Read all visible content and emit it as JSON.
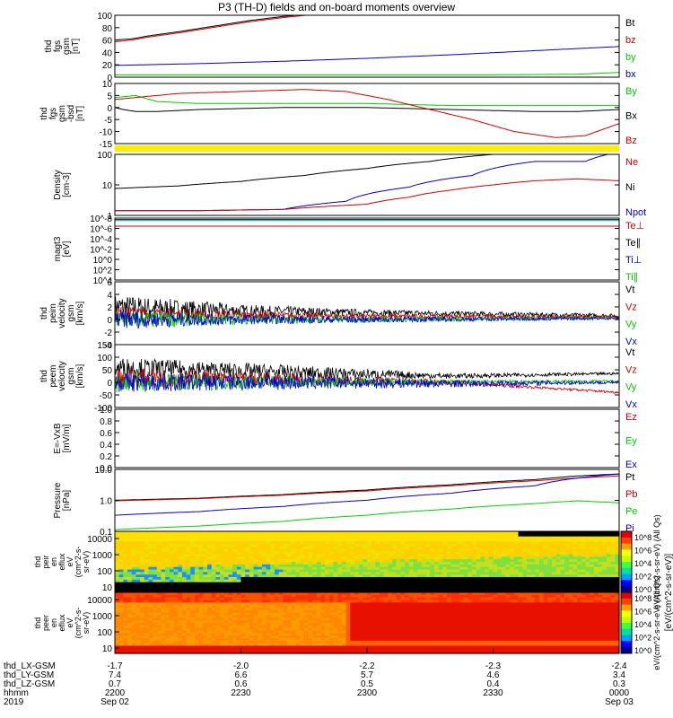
{
  "chart_data": {
    "type": "line",
    "title": "P3 (TH-D) fields and on-board moments overview",
    "x_time_ticks": [
      "2200",
      "2230",
      "2300",
      "2330",
      "0000"
    ],
    "x_date_ticks": [
      "Sep 02",
      "",
      "",
      "",
      "Sep 03"
    ],
    "ephemeris": [
      {
        "label": "thd_LX-GSM",
        "values": [
          "-1.7",
          "-2.0",
          "-2.2",
          "-2.3",
          "-2.4"
        ]
      },
      {
        "label": "thd_LY-GSM",
        "values": [
          "7.4",
          "6.6",
          "5.7",
          "4.6",
          "3.4"
        ]
      },
      {
        "label": "thd_LZ-GSM",
        "values": [
          "0.7",
          "0.6",
          "0.5",
          "0.4",
          "0.3"
        ]
      },
      {
        "label": "hhmm",
        "values": [
          "2200",
          "2230",
          "2300",
          "2330",
          "0000"
        ]
      },
      {
        "label": "2019",
        "values": [
          "Sep 02",
          "",
          "",
          "",
          "Sep 03"
        ]
      }
    ],
    "colors": {
      "black": "#000000",
      "red": "#cc0000",
      "green": "#00cc00",
      "blue": "#0000cc",
      "yellow": "#ffee00"
    },
    "panels": [
      {
        "ylabel": [
          "thd",
          "fgs",
          "gsm",
          "[nT]"
        ],
        "yticks": [
          "100",
          "80",
          "60",
          "40",
          "20",
          "0"
        ],
        "ylim": [
          -5,
          100
        ],
        "log": false,
        "legend": [
          {
            "text": "Bt",
            "color": "black"
          },
          {
            "text": "bz",
            "color": "red"
          },
          {
            "text": "by",
            "color": "green"
          },
          {
            "text": "bx",
            "color": "blue"
          }
        ],
        "series": [
          {
            "color": "black",
            "x": [
              0,
              4,
              8,
              16,
              24,
              32,
              40,
              48,
              50
            ],
            "y": [
              58,
              60,
              65,
              73,
              82,
              91,
              98,
              103,
              105
            ]
          },
          {
            "color": "red",
            "x": [
              0,
              4,
              8,
              16,
              24,
              32,
              40,
              48,
              50
            ],
            "y": [
              55,
              58,
              63,
              71,
              80,
              89,
              96,
              102,
              104
            ]
          },
          {
            "color": "blue",
            "x": [
              0,
              20,
              40,
              60,
              80,
              100,
              120
            ],
            "y": [
              15,
              18,
              22,
              27,
              33,
              40,
              47
            ]
          },
          {
            "color": "green",
            "x": [
              0,
              30,
              60,
              90,
              110,
              120
            ],
            "y": [
              -1,
              -1,
              -1,
              -1,
              0,
              3
            ]
          }
        ]
      },
      {
        "ylabel": [
          "thd",
          "fgs",
          "gsm",
          "-bsd",
          "[nT]"
        ],
        "yticks": [
          "10",
          "5",
          "0",
          "-5",
          "-10",
          "-15"
        ],
        "ylim": [
          -18,
          12
        ],
        "log": false,
        "legend": [
          {
            "text": "By",
            "color": "green"
          },
          {
            "text": "Bx",
            "color": "black"
          },
          {
            "text": "Bz",
            "color": "red"
          }
        ],
        "series": [
          {
            "color": "black",
            "x": [
              0,
              2,
              5,
              10,
              20,
              40,
              60,
              80,
              100,
              110,
              120
            ],
            "y": [
              0,
              -1,
              -2,
              -2,
              -1,
              0,
              0,
              -1,
              -2,
              -2,
              -1
            ]
          },
          {
            "color": "green",
            "x": [
              0,
              5,
              10,
              20,
              40,
              60,
              80,
              100,
              120
            ],
            "y": [
              5,
              6,
              3,
              2,
              2,
              2,
              1,
              1,
              1
            ]
          },
          {
            "color": "red",
            "x": [
              0,
              5,
              15,
              30,
              45,
              55,
              65,
              75,
              85,
              95,
              105,
              112,
              120
            ],
            "y": [
              4,
              5,
              7,
              8,
              9,
              8,
              4,
              -1,
              -6,
              -12,
              -15,
              -14,
              -8
            ]
          }
        ]
      },
      {
        "ylabel": [
          "Density",
          "[cm-3]"
        ],
        "yticks": [
          "100",
          "10",
          "1"
        ],
        "ylim": [
          0.5,
          200
        ],
        "log": true,
        "legend": [
          {
            "text": "Ne",
            "color": "red"
          },
          {
            "text": "Ni",
            "color": "black"
          },
          {
            "text": "Npot",
            "color": "blue"
          }
        ],
        "series": [
          {
            "color": "black",
            "x": [
              0,
              15,
              30,
              45,
              60,
              75,
              90
            ],
            "y": [
              7,
              9,
              14,
              25,
              50,
              100,
              200
            ]
          },
          {
            "color": "blue",
            "x": [
              0,
              20,
              40,
              55,
              70,
              85,
              100,
              112,
              120
            ],
            "y": [
              0.8,
              0.8,
              0.9,
              2,
              8,
              25,
              100,
              100,
              250
            ]
          },
          {
            "color": "red",
            "x": [
              0,
              20,
              40,
              60,
              70,
              80,
              90,
              100,
              110,
              120
            ],
            "y": [
              0.8,
              0.8,
              0.9,
              1.5,
              3,
              6,
              10,
              15,
              18,
              15
            ]
          }
        ]
      },
      {
        "ylabel": [
          "magt3",
          "[eV]"
        ],
        "yticks": [
          "10^-8",
          "10^-6",
          "10^-4",
          "10^-2",
          "10^0",
          "10^2",
          "10^4"
        ],
        "ylim": [
          1e-09,
          10000.0
        ],
        "log": true,
        "legend": [
          {
            "text": "Te⊥",
            "color": "red"
          },
          {
            "text": "Te∥",
            "color": "black"
          },
          {
            "text": "Ti⊥",
            "color": "blue"
          },
          {
            "text": "Ti∥",
            "color": "green"
          }
        ],
        "series": [
          {
            "color": "blue",
            "x": [
              0,
              40,
              80,
              120
            ],
            "y": [
              5000,
              5000,
              5000,
              5000
            ]
          },
          {
            "color": "green",
            "x": [
              0,
              40,
              80,
              120
            ],
            "y": [
              3000,
              3000,
              3000,
              3000
            ]
          },
          {
            "color": "red",
            "x": [
              0,
              40,
              80,
              120
            ],
            "y": [
              200,
              200,
              200,
              200
            ]
          }
        ]
      },
      {
        "ylabel": [
          "thd",
          "peim",
          "velocity",
          "gsm",
          "[km/s]"
        ],
        "yticks": [
          "6",
          "4",
          "2",
          "0",
          "-2",
          "-4"
        ],
        "ylim": [
          -4,
          6
        ],
        "log": false,
        "legend": [
          {
            "text": "Vt",
            "color": "black"
          },
          {
            "text": "Vz",
            "color": "red"
          },
          {
            "text": "Vy",
            "color": "green"
          },
          {
            "text": "Vx",
            "color": "blue"
          }
        ],
        "noise": [
          {
            "color": "black",
            "x": [
              0,
              30,
              60,
              120
            ],
            "mean": [
              2,
              1.4,
              1.1,
              0.6
            ],
            "amp": [
              2,
              1,
              0.5,
              0.3
            ]
          },
          {
            "color": "red",
            "x": [
              0,
              30,
              60,
              120
            ],
            "mean": [
              1,
              0.7,
              0.5,
              0.4
            ],
            "amp": [
              1.2,
              0.6,
              0.4,
              0.2
            ]
          },
          {
            "color": "green",
            "x": [
              0,
              30,
              60,
              120
            ],
            "mean": [
              0,
              0,
              0,
              0.2
            ],
            "amp": [
              1.5,
              0.8,
              0.5,
              0.2
            ]
          },
          {
            "color": "blue",
            "x": [
              0,
              30,
              60,
              120
            ],
            "mean": [
              0,
              0,
              0,
              0.2
            ],
            "amp": [
              1.5,
              0.8,
              0.5,
              0.2
            ]
          }
        ]
      },
      {
        "ylabel": [
          "thd",
          "peem",
          "velocity",
          "gsm",
          "[km/s]"
        ],
        "yticks": [
          "150",
          "100",
          "50",
          "0",
          "-50",
          "-100"
        ],
        "ylim": [
          -100,
          150
        ],
        "log": false,
        "legend": [
          {
            "text": "Vt",
            "color": "black"
          },
          {
            "text": "Vz",
            "color": "red"
          },
          {
            "text": "Vy",
            "color": "green"
          },
          {
            "text": "Vx",
            "color": "blue"
          }
        ],
        "noise": [
          {
            "color": "black",
            "x": [
              0,
              40,
              80,
              120
            ],
            "mean": [
              60,
              40,
              25,
              35
            ],
            "amp": [
              40,
              30,
              10,
              5
            ]
          },
          {
            "color": "red",
            "x": [
              0,
              40,
              80,
              100,
              120
            ],
            "mean": [
              20,
              10,
              0,
              -20,
              -40
            ],
            "amp": [
              40,
              25,
              10,
              5,
              5
            ]
          },
          {
            "color": "green",
            "x": [
              0,
              40,
              80,
              120
            ],
            "mean": [
              0,
              0,
              0,
              5
            ],
            "amp": [
              40,
              25,
              10,
              5
            ]
          },
          {
            "color": "blue",
            "x": [
              0,
              40,
              80,
              120
            ],
            "mean": [
              0,
              0,
              -5,
              0
            ],
            "amp": [
              40,
              30,
              15,
              5
            ]
          }
        ]
      },
      {
        "ylabel": [
          "E=-VxB",
          "[mV/m]"
        ],
        "yticks": [
          "1.0",
          "0.8",
          "0.6",
          "0.4",
          "0.2",
          "0.0"
        ],
        "ylim": [
          0,
          1
        ],
        "log": false,
        "legend": [
          {
            "text": "Ez",
            "color": "red"
          },
          {
            "text": "Ey",
            "color": "green"
          },
          {
            "text": "Ex",
            "color": "blue"
          }
        ],
        "series": []
      },
      {
        "ylabel": [
          "Pressure",
          "[nPa]"
        ],
        "yticks": [
          "10.0",
          "1.0",
          "0.1"
        ],
        "ylim": [
          0.05,
          50
        ],
        "log": true,
        "legend": [
          {
            "text": "Pt",
            "color": "black"
          },
          {
            "text": "Pb",
            "color": "red"
          },
          {
            "text": "Pe",
            "color": "green"
          },
          {
            "text": "Pi",
            "color": "blue"
          }
        ],
        "series": [
          {
            "color": "black",
            "x": [
              0,
              20,
              40,
              60,
              80,
              100,
              110,
              120
            ],
            "y": [
              1.6,
              2,
              3,
              5,
              9,
              16,
              24,
              30
            ]
          },
          {
            "color": "red",
            "x": [
              0,
              20,
              40,
              60,
              80,
              100,
              120
            ],
            "y": [
              1.5,
              1.9,
              2.8,
              4.5,
              8,
              14,
              24
            ]
          },
          {
            "color": "blue",
            "x": [
              0,
              20,
              40,
              60,
              80,
              100,
              120
            ],
            "y": [
              0.3,
              0.45,
              0.8,
              1.6,
              3.5,
              8,
              30
            ]
          },
          {
            "color": "green",
            "x": [
              0,
              20,
              40,
              60,
              80,
              100,
              110,
              120
            ],
            "y": [
              0.06,
              0.09,
              0.15,
              0.3,
              0.6,
              1.1,
              1.5,
              1.2
            ]
          }
        ]
      }
    ],
    "spectrograms": [
      {
        "ylabel": [
          "thd",
          "peir",
          "en",
          "eflux",
          "eV",
          "(cm^2-s-",
          "sr-eV)"
        ],
        "yticks": [
          "10000",
          "1000",
          "100",
          "10"
        ],
        "ylim": [
          5,
          25000
        ],
        "log": true,
        "colorbar_label": "eV/(cm^2-s-sr-eV) (All Qs)"
      },
      {
        "ylabel": [
          "thd",
          "peer",
          "en",
          "eflux",
          "eV",
          "(cm^2-s-",
          "sr-eV)"
        ],
        "yticks": [
          "10000",
          "1000",
          "100",
          "10"
        ],
        "ylim": [
          5,
          25000
        ],
        "log": true,
        "colorbar_label": "eV/(cm^2-s-sr-eV) (All Qs)"
      }
    ],
    "colorbar_ticks": [
      "10^8",
      "10^6",
      "10^4",
      "10^2",
      "10^0"
    ],
    "colorbar_label": "[eV/(cm^2-s-sr-eV)]"
  }
}
